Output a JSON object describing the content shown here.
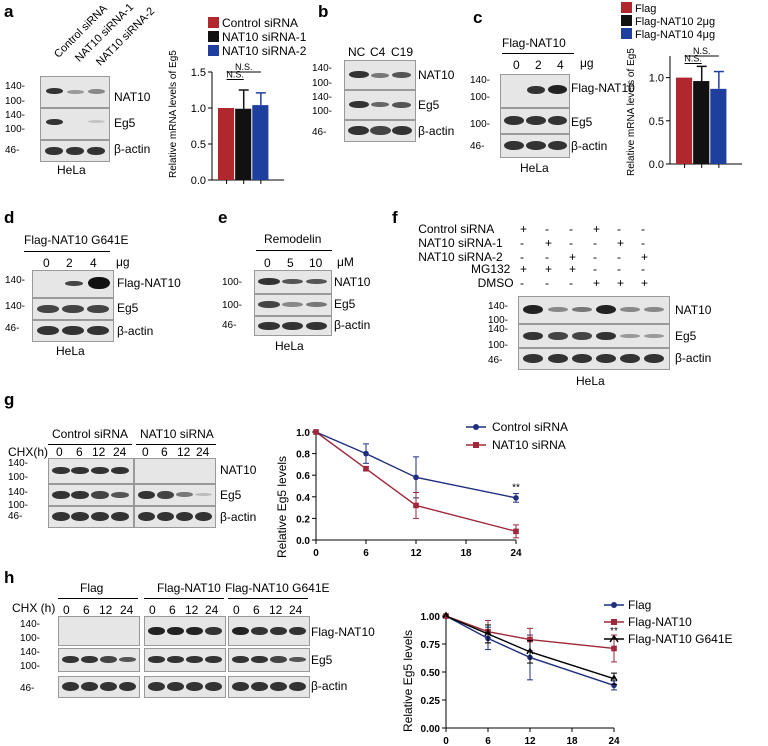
{
  "panels": {
    "a": {
      "label": "a",
      "lanes": [
        "Control siRNA",
        "NAT10 siRNA-1",
        "NAT10 siRNA-2"
      ],
      "mw": [
        "140-",
        "100-",
        "140-",
        "100-",
        "46-"
      ],
      "blots": [
        "NAT10",
        "Eg5",
        "β-actin"
      ],
      "cell": "HeLa",
      "ns": "N.S."
    },
    "b": {
      "label": "b",
      "lanes": [
        "NC",
        "C4",
        "C19"
      ],
      "mw": [
        "140-",
        "100-",
        "140-",
        "100-",
        "46-"
      ],
      "blots": [
        "NAT10",
        "Eg5",
        "β-actin"
      ]
    },
    "c": {
      "label": "c",
      "header": "Flag-NAT10",
      "doses": [
        "0",
        "2",
        "4"
      ],
      "unit": "μg",
      "mw": [
        "140-",
        "100-",
        "100-",
        "46-"
      ],
      "blots": [
        "Flag-NAT10",
        "Eg5",
        "β-actin"
      ],
      "cell": "HeLa",
      "ns": "N.S."
    },
    "d": {
      "label": "d",
      "header": "Flag-NAT10 G641E",
      "doses": [
        "0",
        "2",
        "4"
      ],
      "unit": "μg",
      "mw": [
        "140-",
        "140-",
        "46-"
      ],
      "blots": [
        "Flag-NAT10",
        "Eg5",
        "β-actin"
      ],
      "cell": "HeLa"
    },
    "e": {
      "label": "e",
      "header": "Remodelin",
      "doses": [
        "0",
        "5",
        "10"
      ],
      "unit": "μM",
      "mw": [
        "100-",
        "100-",
        "46-"
      ],
      "blots": [
        "NAT10",
        "Eg5",
        "β-actin"
      ],
      "cell": "HeLa"
    },
    "f": {
      "label": "f",
      "rows": [
        {
          "name": "Control siRNA",
          "signs": [
            "+",
            "-",
            "-",
            "+",
            "-",
            "-"
          ]
        },
        {
          "name": "NAT10 siRNA-1",
          "signs": [
            "-",
            "+",
            "-",
            "-",
            "+",
            "-"
          ]
        },
        {
          "name": "NAT10 siRNA-2",
          "signs": [
            "-",
            "-",
            "+",
            "-",
            "-",
            "+"
          ]
        },
        {
          "name": "MG132",
          "signs": [
            "+",
            "+",
            "+",
            "-",
            "-",
            "-"
          ]
        },
        {
          "name": "DMSO",
          "signs": [
            "-",
            "-",
            "-",
            "+",
            "+",
            "+"
          ]
        }
      ],
      "mw": [
        "140-",
        "100-",
        "140-",
        "100-",
        "46-"
      ],
      "blots": [
        "NAT10",
        "Eg5",
        "β-actin"
      ],
      "cell": "HeLa"
    },
    "g": {
      "label": "g",
      "chx": "CHX(h)",
      "groups": [
        "Control siRNA",
        "NAT10 siRNA"
      ],
      "times": [
        "0",
        "6",
        "12",
        "24"
      ],
      "mw": [
        "140-",
        "100-",
        "140-",
        "100-",
        "46-"
      ],
      "blots": [
        "NAT10",
        "Eg5",
        "β-actin"
      ],
      "sig": "**"
    },
    "h": {
      "label": "h",
      "chx": "CHX (h)",
      "groups": [
        "Flag",
        "Flag-NAT10",
        "Flag-NAT10 G641E"
      ],
      "times": [
        "0",
        "6",
        "12",
        "24"
      ],
      "mw": [
        "140-",
        "100-",
        "140-",
        "100-",
        "46-"
      ],
      "blots": [
        "Flag-NAT10",
        "Eg5",
        "β-actin"
      ],
      "sig": "**"
    }
  },
  "chart_data": [
    {
      "id": "a",
      "type": "bar",
      "categories": [
        "Control siRNA",
        "NAT10 siRNA-1",
        "NAT10 siRNA-2"
      ],
      "values": [
        1.0,
        0.99,
        1.04
      ],
      "errors": [
        0.0,
        0.26,
        0.17
      ],
      "colors": [
        "#b0282e",
        "#111111",
        "#1f3f9f"
      ],
      "ylabel": "Relative mRNA levels of Eg5",
      "ylim": [
        0,
        1.5
      ],
      "yticks": [
        "0.0",
        "0.5",
        "1.0",
        "1.5"
      ],
      "legend": [
        "Control siRNA",
        "NAT10 siRNA-1",
        "NAT10 siRNA-2"
      ],
      "annotations": [
        "N.S.",
        "N.S."
      ]
    },
    {
      "id": "c",
      "type": "bar",
      "categories": [
        "Flag",
        "Flag-NAT10 2μg",
        "Flag-NAT10 4μg"
      ],
      "values": [
        1.0,
        0.96,
        0.87
      ],
      "errors": [
        0.0,
        0.17,
        0.2
      ],
      "colors": [
        "#b0282e",
        "#111111",
        "#1f3f9f"
      ],
      "ylabel": "Relative mRNA levels of Eg5",
      "ylim": [
        0,
        1.25
      ],
      "yticks": [
        "0.0",
        "0.5",
        "1.0"
      ],
      "legend": [
        "Flag",
        "Flag-NAT10 2μg",
        "Flag-NAT10 4μg"
      ],
      "annotations": [
        "N.S.",
        "N.S."
      ]
    },
    {
      "id": "g",
      "type": "line",
      "x": [
        0,
        6,
        12,
        24
      ],
      "series": [
        {
          "name": "Control siRNA",
          "values": [
            1.0,
            0.8,
            0.58,
            0.39
          ],
          "errors": [
            0,
            0.09,
            0.19,
            0.04
          ],
          "color": "#1f2f7f"
        },
        {
          "name": "NAT10 siRNA",
          "values": [
            1.0,
            0.66,
            0.32,
            0.08
          ],
          "errors": [
            0,
            0.02,
            0.12,
            0.06
          ],
          "color": "#a0283a"
        }
      ],
      "ylabel": "Relative Eg5 levels",
      "xlim": [
        0,
        24
      ],
      "ylim": [
        0,
        1.0
      ],
      "xticks": [
        "0",
        "6",
        "12",
        "18",
        "24"
      ],
      "yticks": [
        "0.0",
        "0.2",
        "0.4",
        "0.6",
        "0.8",
        "1.0"
      ],
      "annotations": [
        "**"
      ]
    },
    {
      "id": "h",
      "type": "line",
      "x": [
        0,
        6,
        12,
        24
      ],
      "series": [
        {
          "name": "Flag",
          "values": [
            1.0,
            0.8,
            0.63,
            0.38
          ],
          "errors": [
            0,
            0.1,
            0.2,
            0.04
          ],
          "color": "#1f2f7f"
        },
        {
          "name": "Flag-NAT10",
          "values": [
            1.0,
            0.86,
            0.79,
            0.71
          ],
          "errors": [
            0,
            0.1,
            0.1,
            0.12
          ],
          "color": "#a0283a"
        },
        {
          "name": "Flag-NAT10 G641E",
          "values": [
            1.0,
            0.84,
            0.68,
            0.44
          ],
          "errors": [
            0,
            0.08,
            0.1,
            0.05
          ],
          "color": "#000000"
        }
      ],
      "ylabel": "Relative Eg5 levels",
      "xlim": [
        0,
        24
      ],
      "ylim": [
        0,
        1.0
      ],
      "xticks": [
        "0",
        "6",
        "12",
        "18",
        "24"
      ],
      "yticks": [
        "0.00",
        "0.25",
        "0.50",
        "0.75",
        "1.00"
      ],
      "annotations": [
        "**"
      ]
    }
  ]
}
